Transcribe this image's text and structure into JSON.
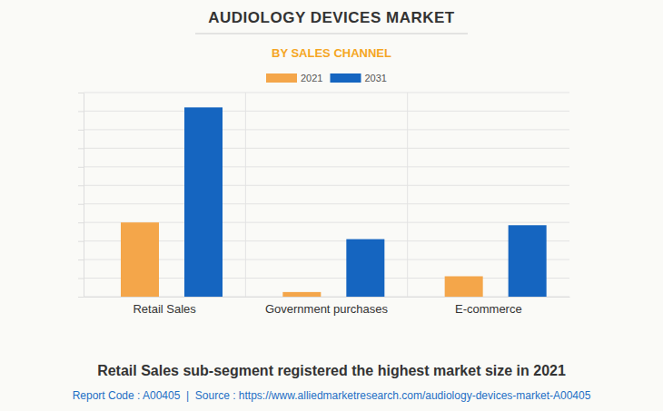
{
  "chart_data": {
    "type": "bar",
    "title": "AUDIOLOGY DEVICES MARKET",
    "subtitle": "BY SALES CHANNEL",
    "caption": "Retail Sales sub-segment registered the highest market size in 2021",
    "footer": "Report Code : A00405  |  Source : https://www.alliedmarketresearch.com/audiology-devices-market-A00405",
    "categories": [
      "Retail Sales",
      "Government purchases",
      "E-commerce"
    ],
    "series": [
      {
        "name": "2021",
        "color": "#f4a64a",
        "values": [
          4.0,
          0.25,
          1.1
        ]
      },
      {
        "name": "2031",
        "color": "#1565c0",
        "values": [
          10.2,
          3.1,
          3.85
        ]
      }
    ],
    "ylim": [
      0,
      11
    ],
    "yticks": [
      0,
      1,
      2,
      3,
      4,
      5,
      6,
      7,
      8,
      9,
      10,
      11
    ],
    "grid": true,
    "legend": "top",
    "tick_labels": "x"
  }
}
